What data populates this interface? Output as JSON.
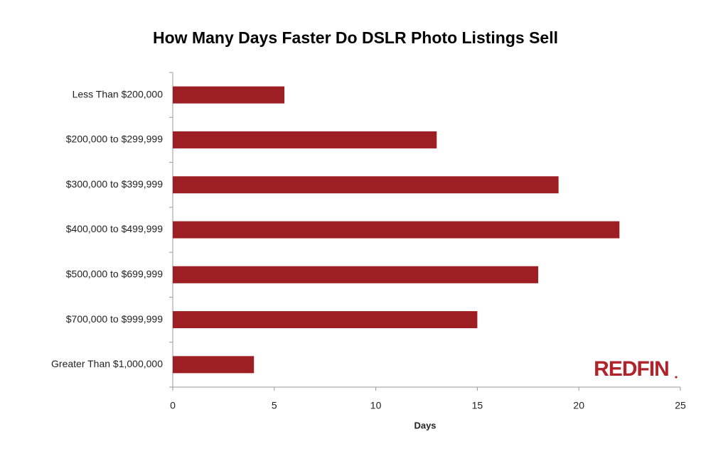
{
  "chart_data": {
    "type": "bar",
    "orientation": "horizontal",
    "title": "How Many Days Faster Do DSLR Photo Listings Sell",
    "categories": [
      "Less Than $200,000",
      "$200,000 to $299,999",
      "$300,000 to $399,999",
      "$400,000 to $499,999",
      "$500,000 to $699,999",
      "$700,000 to $999,999",
      "Greater Than $1,000,000"
    ],
    "values": [
      5.5,
      13,
      19,
      22,
      18,
      15,
      4
    ],
    "color": "#9e1f23",
    "xlabel": "Days",
    "xlim": [
      0,
      25
    ],
    "xticks": [
      0,
      5,
      10,
      15,
      20,
      25
    ],
    "grid": false,
    "logo": "REDFIN"
  }
}
